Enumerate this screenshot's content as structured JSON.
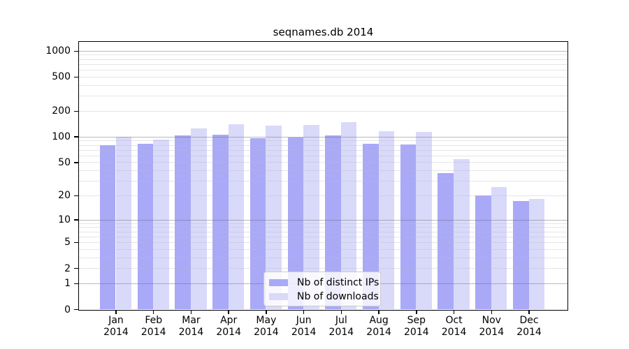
{
  "chart_data": {
    "type": "bar",
    "title": "seqnames.db 2014",
    "yscale": "log1p",
    "grid": true,
    "legend_position": "lower center",
    "xlabel": "",
    "ylabel": "",
    "ylim": [
      0,
      1270
    ],
    "yticks": [
      1000,
      500,
      200,
      100,
      50,
      20,
      10,
      5,
      2,
      1,
      0
    ],
    "categories": [
      "Jan 2014",
      "Feb 2014",
      "Mar 2014",
      "Apr 2014",
      "May 2014",
      "Jun 2014",
      "Jul 2014",
      "Aug 2014",
      "Sep 2014",
      "Oct 2014",
      "Nov 2014",
      "Dec 2014"
    ],
    "series": [
      {
        "name": "Nb of distinct IPs",
        "color": "#a9a9f8",
        "values": [
          80,
          83,
          104,
          105,
          95,
          98,
          104,
          82,
          81,
          37,
          20,
          17
        ]
      },
      {
        "name": "Nb of downloads",
        "color": "#d9d9fa",
        "values": [
          100,
          92,
          125,
          140,
          134,
          137,
          148,
          115,
          114,
          54,
          25,
          18
        ]
      }
    ],
    "colors": {
      "axis": "#000000",
      "grid_major": "#b4b4b4",
      "grid_minor": "#e8e8ef",
      "background": "#ffffff",
      "legend_border": "#cccccc"
    }
  }
}
